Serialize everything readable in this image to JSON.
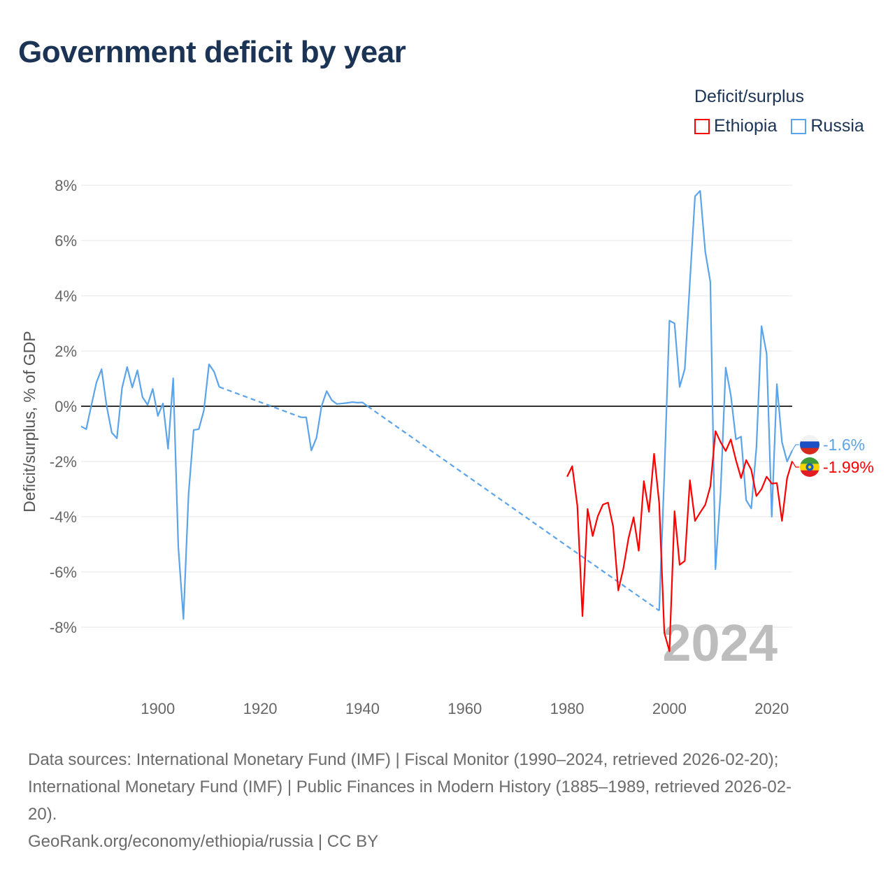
{
  "title": "Government deficit by year",
  "legend": {
    "title": "Deficit/surplus",
    "items": [
      {
        "label": "Ethiopia",
        "color": "#ff0000"
      },
      {
        "label": "Russia",
        "color": "#5ba4ea"
      }
    ]
  },
  "chart_data": {
    "type": "line",
    "title": "Government deficit by year",
    "ylabel": "Deficit/surplus, % of GDP",
    "xlabel": "",
    "xlim": [
      1885,
      2024
    ],
    "ylim": [
      -9.5,
      8
    ],
    "x_ticks": [
      1900,
      1920,
      1940,
      1960,
      1980,
      2000,
      2020
    ],
    "y_ticks": [
      8,
      6,
      4,
      2,
      0,
      -2,
      -4,
      -6,
      -8
    ],
    "y_tick_labels": [
      "8%",
      "6%",
      "4%",
      "2%",
      "0%",
      "-2%",
      "-4%",
      "-6%",
      "-8%"
    ],
    "grid": true,
    "year_watermark": "2024",
    "series": [
      {
        "name": "Russia",
        "color": "#5ba4ea",
        "end_label": "-1.6%",
        "flag": "russia-flag",
        "x": [
          1885,
          1886,
          1887,
          1888,
          1889,
          1890,
          1891,
          1892,
          1893,
          1894,
          1895,
          1896,
          1897,
          1898,
          1899,
          1900,
          1901,
          1902,
          1903,
          1904,
          1905,
          1906,
          1907,
          1908,
          1909,
          1910,
          1911,
          1912,
          1928,
          1929,
          1930,
          1931,
          1932,
          1933,
          1934,
          1935,
          1936,
          1937,
          1938,
          1939,
          1940,
          1941,
          1998,
          1999,
          2000,
          2001,
          2002,
          2003,
          2004,
          2005,
          2006,
          2007,
          2008,
          2009,
          2010,
          2011,
          2012,
          2013,
          2014,
          2015,
          2016,
          2017,
          2018,
          2019,
          2020,
          2021,
          2022,
          2023,
          2024
        ],
        "y": [
          -0.73,
          -0.83,
          0.03,
          0.86,
          1.34,
          0.0,
          -0.96,
          -1.16,
          0.66,
          1.42,
          0.68,
          1.3,
          0.33,
          0.05,
          0.63,
          -0.35,
          0.1,
          -1.54,
          1.01,
          -5.1,
          -7.7,
          -3.2,
          -0.86,
          -0.83,
          -0.15,
          1.52,
          1.25,
          0.7,
          -0.4,
          -0.4,
          -1.6,
          -1.15,
          0.0,
          0.55,
          0.22,
          0.08,
          0.1,
          0.12,
          0.15,
          0.13,
          0.14,
          0.0,
          -7.4,
          -2.5,
          3.1,
          3.0,
          0.7,
          1.35,
          4.5,
          7.6,
          7.8,
          5.6,
          4.5,
          -5.9,
          -3.1,
          1.4,
          0.4,
          -1.2,
          -1.1,
          -3.4,
          -3.7,
          -1.5,
          2.9,
          1.9,
          -4.0,
          0.8,
          -1.3,
          -2.0,
          -1.6
        ]
      },
      {
        "name": "Ethiopia",
        "color": "#ff0000",
        "end_label": "-1.99%",
        "flag": "ethiopia-flag",
        "x": [
          1980,
          1981,
          1982,
          1983,
          1984,
          1985,
          1986,
          1987,
          1988,
          1989,
          1990,
          1991,
          1992,
          1993,
          1994,
          1995,
          1996,
          1997,
          1998,
          1999,
          2000,
          2001,
          2002,
          2003,
          2004,
          2005,
          2006,
          2007,
          2008,
          2009,
          2010,
          2011,
          2012,
          2013,
          2014,
          2015,
          2016,
          2017,
          2018,
          2019,
          2020,
          2021,
          2022,
          2023,
          2024
        ],
        "y": [
          -2.55,
          -2.17,
          -3.6,
          -7.6,
          -3.72,
          -4.7,
          -3.98,
          -3.56,
          -3.49,
          -4.36,
          -6.67,
          -5.87,
          -4.78,
          -4.02,
          -5.23,
          -2.71,
          -3.82,
          -1.72,
          -3.51,
          -8.2,
          -8.87,
          -3.8,
          -5.74,
          -5.6,
          -2.68,
          -4.15,
          -3.85,
          -3.57,
          -2.9,
          -0.9,
          -1.3,
          -1.62,
          -1.2,
          -1.95,
          -2.6,
          -1.95,
          -2.3,
          -3.25,
          -3.0,
          -2.55,
          -2.8,
          -2.78,
          -4.15,
          -2.6,
          -1.99
        ]
      }
    ]
  },
  "footer": {
    "line1": "Data sources: International Monetary Fund (IMF) | Fiscal Monitor (1990–2024, retrieved 2026-02-20);",
    "line2": "International Monetary Fund (IMF) | Public Finances in Modern History (1885–1989, retrieved 2026-02-",
    "line3": "20).",
    "line4": "GeoRank.org/economy/ethiopia/russia | CC BY"
  }
}
